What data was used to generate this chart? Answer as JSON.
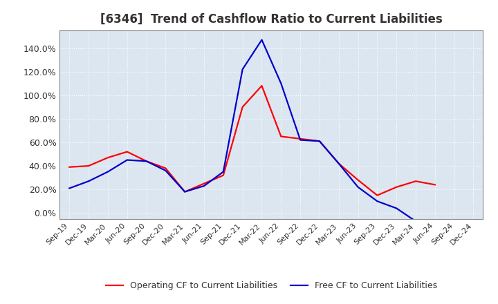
{
  "title": "[6346]  Trend of Cashflow Ratio to Current Liabilities",
  "x_labels": [
    "Sep-19",
    "Dec-19",
    "Mar-20",
    "Jun-20",
    "Sep-20",
    "Dec-20",
    "Mar-21",
    "Jun-21",
    "Sep-21",
    "Dec-21",
    "Mar-22",
    "Jun-22",
    "Sep-22",
    "Dec-22",
    "Mar-23",
    "Jun-23",
    "Sep-23",
    "Dec-23",
    "Mar-24",
    "Jun-24",
    "Sep-24",
    "Dec-24"
  ],
  "operating_cf": [
    0.39,
    0.4,
    0.47,
    0.52,
    0.44,
    0.38,
    0.18,
    0.25,
    0.32,
    0.9,
    1.08,
    0.65,
    0.63,
    0.61,
    0.42,
    0.28,
    0.15,
    0.22,
    0.27,
    0.24,
    null,
    null
  ],
  "free_cf": [
    0.21,
    0.27,
    0.35,
    0.45,
    0.44,
    0.36,
    0.18,
    0.23,
    0.35,
    1.22,
    1.47,
    1.1,
    0.62,
    0.61,
    0.42,
    0.22,
    0.1,
    0.04,
    -0.07,
    null,
    null,
    null
  ],
  "operating_color": "#ff0000",
  "free_color": "#0000cc",
  "ylim": [
    -0.05,
    1.55
  ],
  "yticks": [
    0.0,
    0.2,
    0.4,
    0.6,
    0.8,
    1.0,
    1.2,
    1.4
  ],
  "plot_bg_color": "#dce6f0",
  "fig_bg_color": "#ffffff",
  "grid_color": "#ffffff",
  "title_fontsize": 12,
  "tick_fontsize": 8,
  "legend_labels": [
    "Operating CF to Current Liabilities",
    "Free CF to Current Liabilities"
  ]
}
